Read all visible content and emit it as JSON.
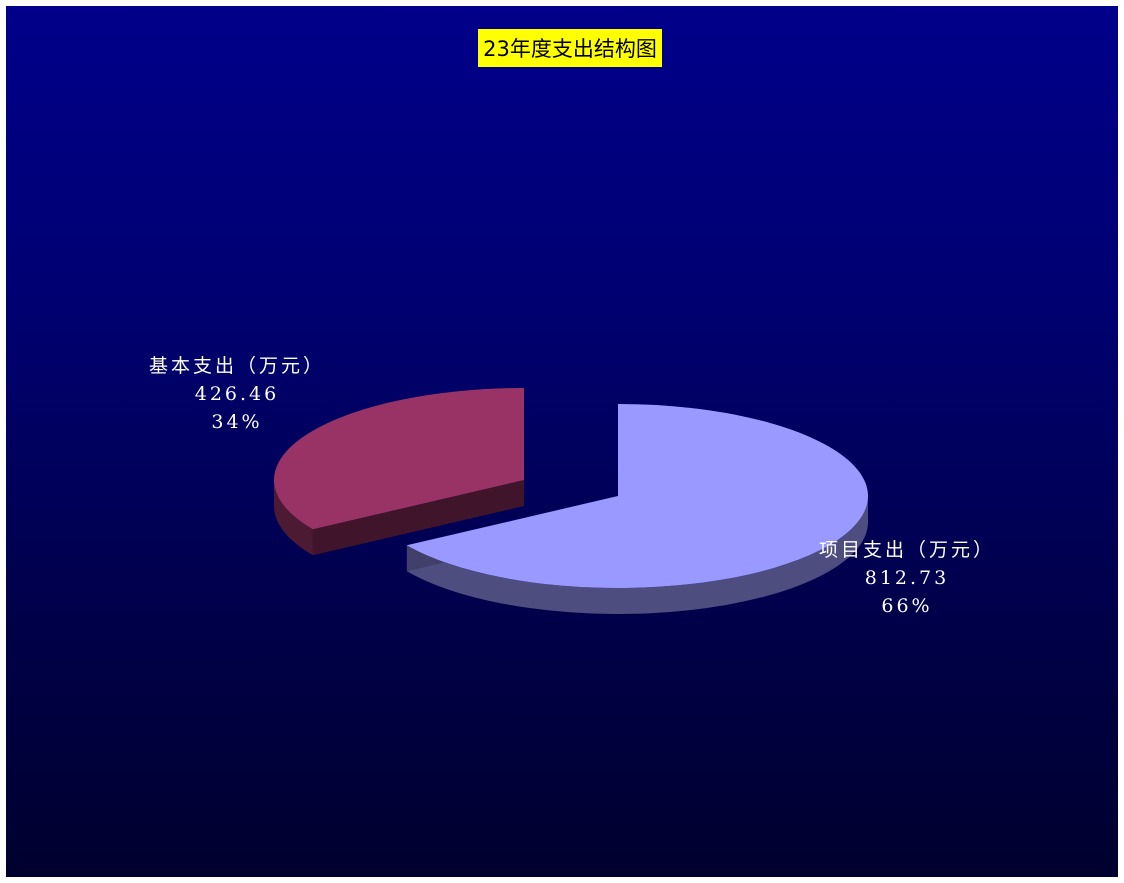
{
  "chart_data": {
    "type": "pie",
    "title": "23年度支出结构图",
    "title_bg_color": "#ffff00",
    "background_colors": [
      "#00008a",
      "#00002e"
    ],
    "unit": "万元",
    "slices": [
      {
        "name": "基本支出（万元）",
        "value": "426.46",
        "percent": "34%",
        "fraction": 0.34,
        "color": "#993366"
      },
      {
        "name": "项目支出（万元）",
        "value": "812.73",
        "percent": "66%",
        "fraction": 0.66,
        "color": "#9999ff"
      }
    ]
  }
}
